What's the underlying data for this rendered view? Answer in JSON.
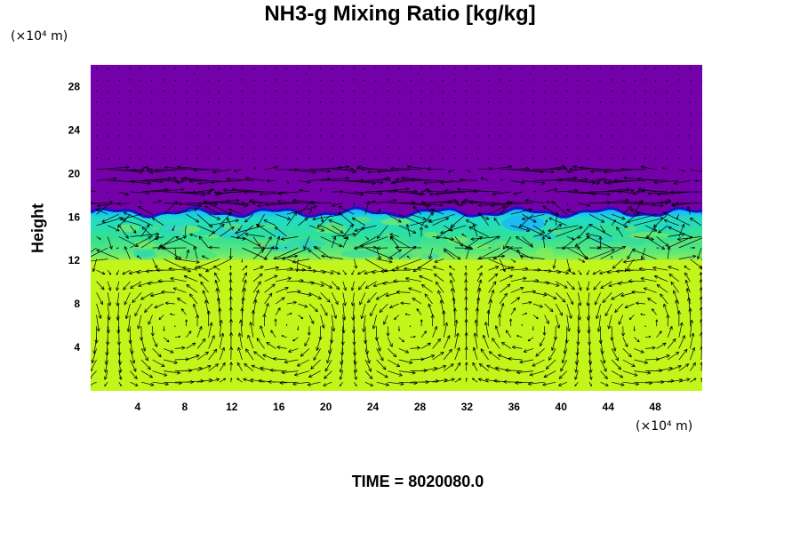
{
  "chart_data": {
    "type": "heatmap",
    "title": "NH3-g Mixing Ratio [kg/kg]",
    "ylabel": "Height",
    "y_unit_label": "(×10⁴ m)",
    "x_unit_label": "(×10⁴ m)",
    "time_label": "TIME = 8020080.0",
    "xlim": [
      0,
      52
    ],
    "ylim": [
      0,
      30
    ],
    "x_ticks": [
      4,
      8,
      12,
      16,
      20,
      24,
      28,
      32,
      36,
      40,
      44,
      48
    ],
    "y_ticks": [
      4,
      8,
      12,
      16,
      20,
      24,
      28
    ],
    "layers": [
      {
        "name": "upper",
        "y_from": 16.5,
        "y_to": 30,
        "color": "#7300a8"
      },
      {
        "name": "transition",
        "y_from": 12,
        "y_to": 16.5,
        "color": "#2fe0a0"
      },
      {
        "name": "lower",
        "y_from": 0,
        "y_to": 12,
        "color": "#c2f51a"
      }
    ],
    "vector_field": "velocity arrows overlay",
    "colors": {
      "upper": "#7300a8",
      "interface_dark": "#1515c8",
      "interface_light": "#19b4ff",
      "transition": "#2fe0a0",
      "lower": "#c2f51a",
      "arrow": "#000000"
    }
  }
}
